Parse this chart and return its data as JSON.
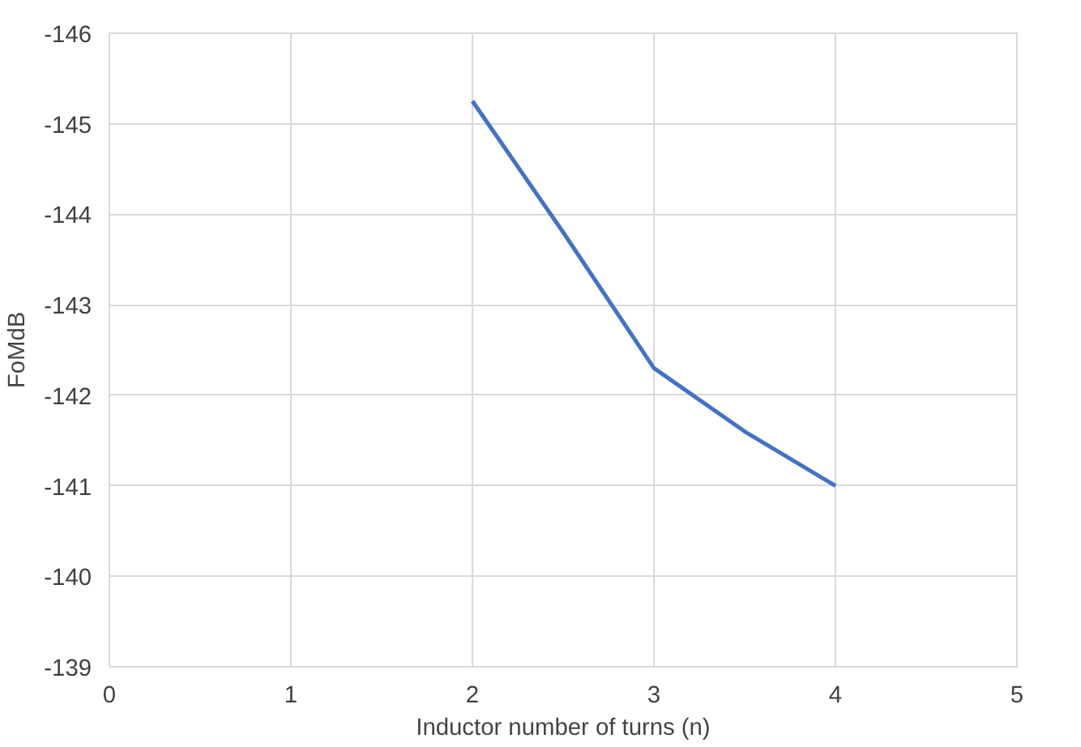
{
  "chart_data": {
    "type": "line",
    "xlabel": "Inductor number of turns (n)",
    "ylabel": "FoMdB",
    "x": [
      2,
      2.5,
      3,
      3.5,
      4
    ],
    "series": [
      {
        "color": "#4472c4",
        "values": [
          -145.25,
          -143.8,
          -142.3,
          -141.6,
          -141.0
        ]
      }
    ],
    "xlim": [
      0,
      5
    ],
    "xticks": [
      0,
      1,
      2,
      3,
      4,
      5
    ],
    "ylim": [
      -139,
      -146
    ],
    "yticks": [
      -139,
      -140,
      -141,
      -142,
      -143,
      -144,
      -145,
      -146
    ],
    "grid": true,
    "marker": "none",
    "line_style": "solid"
  }
}
